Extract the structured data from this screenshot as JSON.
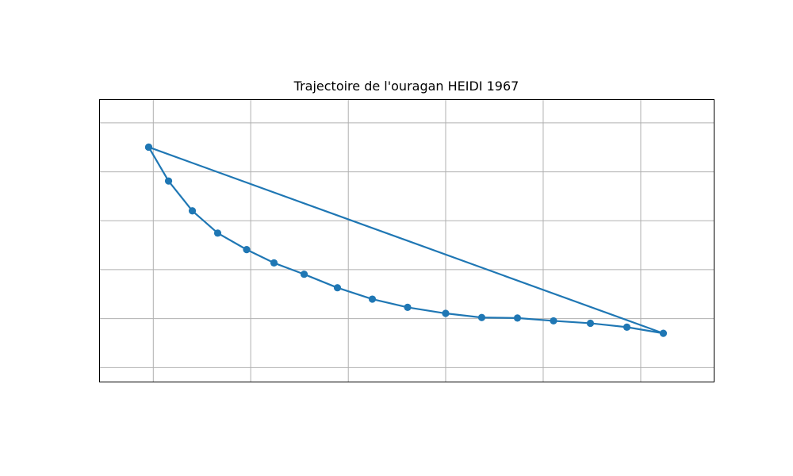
{
  "chart_data": {
    "type": "line",
    "title": "Trajectoire de l'ouragan HEIDI 1967",
    "xlabel": "",
    "ylabel": "",
    "grid": true,
    "ticks_shown": false,
    "xlim": [
      0.0,
      1.0
    ],
    "ylim": [
      0.0,
      1.0
    ],
    "x_gridlines": [
      0.0875,
      0.246,
      0.4048,
      0.5632,
      0.7219,
      0.8806
    ],
    "y_gridlines": [
      0.0509,
      0.2244,
      0.3977,
      0.5709,
      0.7441,
      0.9174
    ],
    "series": [
      {
        "color": "#1f77b4",
        "marker": "circle",
        "x": [
          0.08,
          0.1123,
          0.151,
          0.1923,
          0.2394,
          0.2839,
          0.3329,
          0.3871,
          0.4439,
          0.5013,
          0.5632,
          0.6219,
          0.68,
          0.7387,
          0.7987,
          0.8581,
          0.9174,
          0.08
        ],
        "y": [
          0.8316,
          0.7116,
          0.606,
          0.5272,
          0.4688,
          0.4216,
          0.3815,
          0.3337,
          0.2934,
          0.2643,
          0.2429,
          0.2282,
          0.2265,
          0.2165,
          0.208,
          0.1942,
          0.1724,
          0.8316
        ]
      }
    ]
  }
}
